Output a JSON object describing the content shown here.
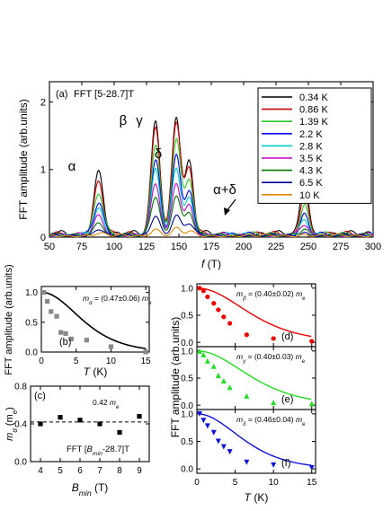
{
  "chart_data": [
    {
      "id": "a",
      "type": "line",
      "panel_label": "(a)",
      "annotation": "FFT [5-28.7]T",
      "xlabel": "f (T)",
      "ylabel": "FFT amplitude (arb.units)",
      "xlim": [
        50,
        300
      ],
      "ylim": [
        0,
        2.3
      ],
      "xticks": [
        "50",
        "75",
        "100",
        "125",
        "150",
        "175",
        "200",
        "225",
        "250",
        "275",
        "300"
      ],
      "yticks": [
        "0",
        "1",
        "2"
      ],
      "legend_position": "top-right",
      "peak_labels": [
        "α",
        "β",
        "γ",
        "δ",
        "α+δ"
      ],
      "peaks": {
        "alpha": 88,
        "beta": 132,
        "gamma": 148,
        "delta": 158,
        "alpha_plus_delta": 247
      },
      "series": [
        {
          "name": "0.34 K",
          "color": "#000000",
          "peak_amplitudes": [
            0.95,
            1.68,
            1.75,
            1.05,
            0.85
          ]
        },
        {
          "name": "0.86 K",
          "color": "#cc0000",
          "peak_amplitudes": [
            0.8,
            1.62,
            1.68,
            0.97,
            0.66
          ]
        },
        {
          "name": "1.39 K",
          "color": "#22cc22",
          "peak_amplitudes": [
            0.62,
            1.35,
            1.4,
            0.82,
            0.45
          ]
        },
        {
          "name": "2.2 K",
          "color": "#0000ee",
          "peak_amplitudes": [
            0.47,
            1.1,
            1.15,
            0.65,
            0.3
          ]
        },
        {
          "name": "2.8 K",
          "color": "#00cccc",
          "peak_amplitudes": [
            0.38,
            0.95,
            0.98,
            0.55,
            0.22
          ]
        },
        {
          "name": "3.5 K",
          "color": "#cc00cc",
          "peak_amplitudes": [
            0.3,
            0.75,
            0.78,
            0.45,
            0.16
          ]
        },
        {
          "name": "4.3 K",
          "color": "#007700",
          "peak_amplitudes": [
            0.2,
            0.58,
            0.6,
            0.34,
            0.1
          ]
        },
        {
          "name": "6.5 K",
          "color": "#000099",
          "peak_amplitudes": [
            0.1,
            0.3,
            0.3,
            0.18,
            0.05
          ]
        },
        {
          "name": "10 K",
          "color": "#dd8800",
          "peak_amplitudes": [
            0.03,
            0.1,
            0.1,
            0.06,
            0.02
          ]
        }
      ]
    },
    {
      "id": "b",
      "type": "scatter",
      "panel_label": "(b)",
      "annotation": "m_α = (0.47±0.06) m_e",
      "xlabel": "T (K)",
      "ylabel": "FFT amplitude (arb.units)",
      "xlim": [
        0,
        15.5
      ],
      "ylim": [
        0,
        1.1
      ],
      "xticks": [
        "0",
        "5",
        "10",
        "15"
      ],
      "yticks": [
        "0.0",
        "0.5",
        "1.0"
      ],
      "marker_color": "#888888",
      "fit_color": "#000000",
      "effective_mass": 0.47,
      "points": [
        [
          0.34,
          1.0
        ],
        [
          0.86,
          0.85
        ],
        [
          1.39,
          0.68
        ],
        [
          2.2,
          0.6
        ],
        [
          2.8,
          0.33
        ],
        [
          3.5,
          0.31
        ],
        [
          4.3,
          0.22
        ],
        [
          6.5,
          0.2
        ],
        [
          10,
          0.09
        ],
        [
          15,
          0.0
        ]
      ]
    },
    {
      "id": "c",
      "type": "scatter",
      "panel_label": "(c)",
      "annotation": "FFT [B_min-28.7]T",
      "reference_label": "0.42 m_e",
      "reference_value": 0.42,
      "xlabel": "B_min (T)",
      "ylabel": "m_α (m_e)",
      "xlim": [
        3.5,
        9.5
      ],
      "ylim": [
        0,
        0.8
      ],
      "xticks": [
        "4",
        "5",
        "6",
        "7",
        "8",
        "9"
      ],
      "yticks": [
        "0.0",
        "0.4",
        "0.8"
      ],
      "marker_color": "#000000",
      "points": [
        [
          4,
          0.4
        ],
        [
          5,
          0.47
        ],
        [
          6,
          0.44
        ],
        [
          7,
          0.4
        ],
        [
          8,
          0.31
        ],
        [
          9,
          0.48
        ]
      ]
    },
    {
      "id": "d",
      "type": "scatter",
      "panel_label": "(d)",
      "annotation": "m_β = (0.40±0.02) m_e",
      "xlim": [
        0,
        15.5
      ],
      "ylim": [
        -0.08,
        1.08
      ],
      "xticks": [
        "0",
        "5",
        "10",
        "15"
      ],
      "yticks": [
        "0.0",
        "0.5",
        "1.0"
      ],
      "marker": "circle",
      "marker_color": "#ee0000",
      "effective_mass": 0.4,
      "points": [
        [
          0.34,
          1.0
        ],
        [
          0.86,
          0.95
        ],
        [
          1.39,
          0.84
        ],
        [
          2.2,
          0.72
        ],
        [
          2.8,
          0.6
        ],
        [
          3.5,
          0.47
        ],
        [
          4.3,
          0.35
        ],
        [
          6.5,
          0.14
        ],
        [
          10,
          0.07
        ],
        [
          15,
          0.02
        ]
      ]
    },
    {
      "id": "e",
      "type": "scatter",
      "panel_label": "(e)",
      "annotation": "m_γ = (0.40±0.03) m_e",
      "xlim": [
        0,
        15.5
      ],
      "ylim": [
        -0.08,
        1.08
      ],
      "xticks": [
        "0",
        "5",
        "10",
        "15"
      ],
      "yticks": [
        "0.0",
        "0.5",
        "1.0"
      ],
      "marker": "triangle-up",
      "marker_color": "#22dd22",
      "effective_mass": 0.4,
      "points": [
        [
          0.34,
          1.0
        ],
        [
          0.86,
          0.93
        ],
        [
          1.39,
          0.82
        ],
        [
          2.2,
          0.72
        ],
        [
          2.8,
          0.55
        ],
        [
          3.5,
          0.45
        ],
        [
          4.3,
          0.33
        ],
        [
          6.5,
          0.17
        ],
        [
          10,
          0.05
        ],
        [
          15,
          0.03
        ]
      ]
    },
    {
      "id": "f",
      "type": "scatter",
      "panel_label": "(f)",
      "annotation": "m_δ = (0.46±0.04) m_e",
      "xlabel": "T (K)",
      "xlim": [
        0,
        15.5
      ],
      "ylim": [
        -0.08,
        1.08
      ],
      "xticks": [
        "0",
        "5",
        "10",
        "15"
      ],
      "yticks": [
        "0.0",
        "0.5",
        "1.0"
      ],
      "marker": "triangle-down",
      "marker_color": "#1010dd",
      "effective_mass": 0.46,
      "points": [
        [
          0.34,
          1.0
        ],
        [
          0.86,
          0.88
        ],
        [
          1.39,
          0.78
        ],
        [
          2.2,
          0.66
        ],
        [
          2.8,
          0.5
        ],
        [
          3.5,
          0.4
        ],
        [
          4.3,
          0.31
        ],
        [
          6.5,
          0.12
        ],
        [
          10,
          0.07
        ],
        [
          15,
          0.02
        ]
      ]
    }
  ],
  "shared_ylabel_right": "FFT amplitude (arb.units)"
}
